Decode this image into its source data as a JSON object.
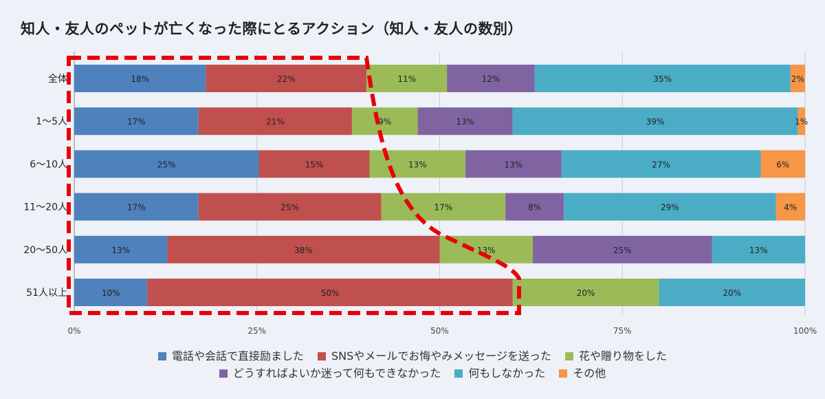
{
  "title": "知人・友人のペットが亡くなった際にとるアクション（知人・友人の数別）",
  "chart_data": {
    "type": "bar",
    "orientation": "horizontal",
    "stacked": "percent",
    "title": "知人・友人のペットが亡くなった際にとるアクション（知人・友人の数別）",
    "categories": [
      "全体",
      "1〜5人",
      "6〜10人",
      "11〜20人",
      "20〜50人",
      "51人以上"
    ],
    "xlim": [
      0,
      100
    ],
    "xticks": [
      "0%",
      "25%",
      "50%",
      "75%",
      "100%"
    ],
    "grid": true,
    "legend_position": "bottom",
    "series": [
      {
        "name": "電話や会話で直接励ました",
        "color": "#4f81bd",
        "values": [
          18,
          17,
          25,
          17,
          13,
          10
        ]
      },
      {
        "name": "SNSやメールでお悔やみメッセージを送った",
        "color": "#c0504d",
        "values": [
          22,
          21,
          15,
          25,
          38,
          50
        ]
      },
      {
        "name": "花や贈り物をした",
        "color": "#9bbb59",
        "values": [
          11,
          9,
          13,
          17,
          13,
          20
        ]
      },
      {
        "name": "どうすればよいか迷って何もできなかった",
        "color": "#8064a2",
        "values": [
          12,
          13,
          13,
          8,
          25,
          0
        ]
      },
      {
        "name": "何もしなかった",
        "color": "#4bacc6",
        "values": [
          35,
          39,
          27,
          29,
          13,
          20
        ]
      },
      {
        "name": "その他",
        "color": "#f79646",
        "values": [
          2,
          1,
          6,
          4,
          0,
          0
        ]
      }
    ],
    "highlight": {
      "color": "#e8000b",
      "style": "dashed"
    }
  }
}
